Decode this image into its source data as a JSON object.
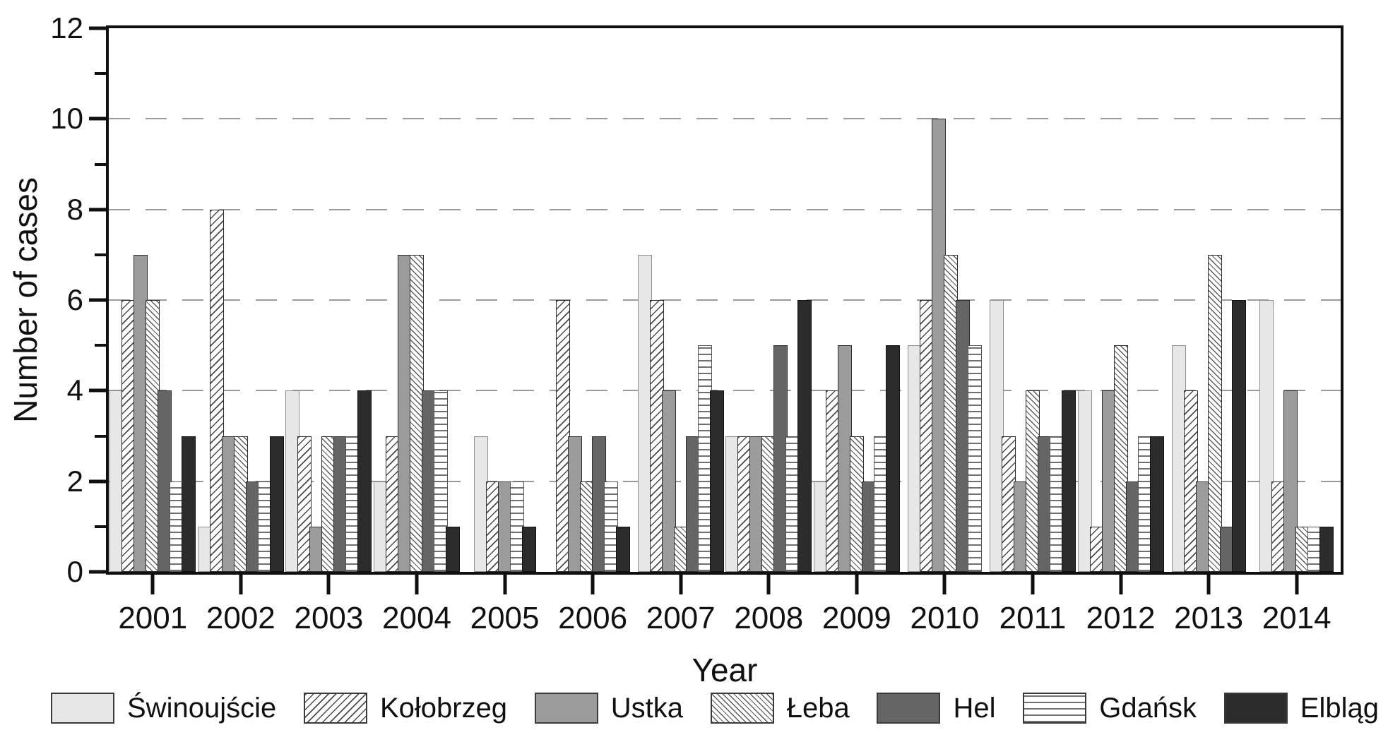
{
  "figure": {
    "background": "#ffffff"
  },
  "axes": {
    "x_title": "Year",
    "y_title": "Number of cases"
  },
  "chart_data": {
    "type": "bar",
    "title": "",
    "xlabel": "Year",
    "ylabel": "Number of cases",
    "ylim": [
      0,
      12
    ],
    "yticks": [
      0,
      2,
      4,
      6,
      8,
      10,
      12
    ],
    "yticks_minor": [
      1,
      3,
      5,
      7,
      9,
      11
    ],
    "gridlines": [
      2,
      4,
      6,
      8,
      10
    ],
    "grid_style": "dashed",
    "legend_position": "bottom",
    "categories": [
      "2001",
      "2002",
      "2003",
      "2004",
      "2005",
      "2006",
      "2007",
      "2008",
      "2009",
      "2010",
      "2011",
      "2012",
      "2013",
      "2014"
    ],
    "series": [
      {
        "name": "Świnoujście",
        "key": "swinoujscie",
        "pattern": "solid-light",
        "color": "#e7e7e7",
        "values": [
          4,
          1,
          4,
          2,
          3,
          0,
          7,
          3,
          2,
          5,
          6,
          4,
          5,
          6
        ]
      },
      {
        "name": "Kołobrzeg",
        "key": "kolobrzeg",
        "pattern": "hatch-forward",
        "color": "#ffffff",
        "values": [
          6,
          8,
          3,
          3,
          2,
          6,
          6,
          3,
          4,
          6,
          3,
          1,
          4,
          2
        ]
      },
      {
        "name": "Ustka",
        "key": "ustka",
        "pattern": "solid-medium",
        "color": "#9b9b9b",
        "values": [
          7,
          3,
          1,
          7,
          2,
          3,
          4,
          3,
          5,
          10,
          2,
          4,
          2,
          4
        ]
      },
      {
        "name": "Łeba",
        "key": "leba",
        "pattern": "hatch-back-fine",
        "color": "#ffffff",
        "values": [
          6,
          3,
          3,
          7,
          0,
          2,
          1,
          3,
          3,
          7,
          4,
          5,
          7,
          1
        ]
      },
      {
        "name": "Hel",
        "key": "hel",
        "pattern": "solid-dark",
        "color": "#656565",
        "values": [
          4,
          2,
          3,
          4,
          0,
          3,
          3,
          5,
          2,
          6,
          3,
          2,
          1,
          0
        ]
      },
      {
        "name": "Gdańsk",
        "key": "gdansk",
        "pattern": "hlines",
        "color": "#ffffff",
        "values": [
          2,
          2,
          3,
          4,
          2,
          2,
          5,
          3,
          3,
          5,
          3,
          3,
          0,
          1
        ]
      },
      {
        "name": "Elbląg",
        "key": "elblag",
        "pattern": "solid-black",
        "color": "#2c2c2c",
        "values": [
          3,
          3,
          4,
          1,
          1,
          1,
          4,
          6,
          5,
          0,
          4,
          3,
          6,
          1
        ]
      }
    ]
  }
}
